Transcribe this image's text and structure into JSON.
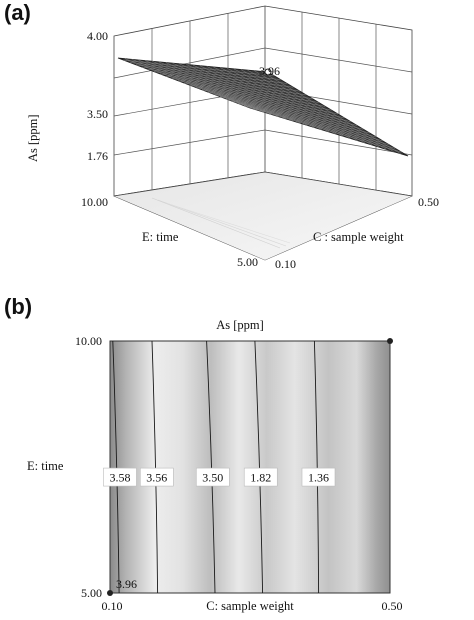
{
  "panels": {
    "a": {
      "label": "(a)"
    },
    "b": {
      "label": "(b)"
    }
  },
  "colors": {
    "surface": "#3a3a3a",
    "mesh": "#8c8c8c",
    "contour": "#1a1a1a",
    "design_point": "#222222",
    "axis": "#444444"
  },
  "chart_data": [
    {
      "type": "surface",
      "panel": "(a)",
      "zlabel": "As [ppm]",
      "xlabel": "C : sample weight",
      "ylabel": "E: time",
      "x_ticks": [
        "0.10",
        "0.50"
      ],
      "y_ticks": [
        "5.00",
        "10.00"
      ],
      "z_ticks": [
        "1.76",
        "3.50",
        "4.00"
      ],
      "xlim": [
        0.1,
        0.5
      ],
      "ylim": [
        5.0,
        10.0
      ],
      "zlim": [
        1.76,
        4.0
      ],
      "surface_corners": [
        {
          "x": 0.1,
          "y": 10.0,
          "z": 3.8
        },
        {
          "x": 0.1,
          "y": 5.0,
          "z": 3.96
        },
        {
          "x": 0.5,
          "y": 10.0,
          "z": 1.36
        },
        {
          "x": 0.5,
          "y": 5.0,
          "z": 1.3
        }
      ],
      "annotation": {
        "text": "3.96",
        "x": 0.1,
        "y": 5.0,
        "z": 3.96
      }
    },
    {
      "type": "contour",
      "panel": "(b)",
      "title": "As [ppm]",
      "xlabel": "C: sample weight",
      "ylabel": "E: time",
      "x_ticks": [
        "0.10",
        "0.50"
      ],
      "y_ticks": [
        "5.00",
        "10.00"
      ],
      "xlim": [
        0.1,
        0.5
      ],
      "ylim": [
        5.0,
        10.0
      ],
      "contour_levels": [
        {
          "label": "3.58",
          "x_at_ymin": 0.113,
          "x_at_ymax": 0.104
        },
        {
          "label": "3.56",
          "x_at_ymin": 0.168,
          "x_at_ymax": 0.16
        },
        {
          "label": "3.50",
          "x_at_ymin": 0.25,
          "x_at_ymax": 0.238
        },
        {
          "label": "1.82",
          "x_at_ymin": 0.318,
          "x_at_ymax": 0.307
        },
        {
          "label": "1.36",
          "x_at_ymin": 0.398,
          "x_at_ymax": 0.392
        }
      ],
      "design_points": [
        {
          "x": 0.1,
          "y": 5.0,
          "label": "3.96"
        },
        {
          "x": 0.5,
          "y": 10.0,
          "label": ""
        }
      ]
    }
  ]
}
